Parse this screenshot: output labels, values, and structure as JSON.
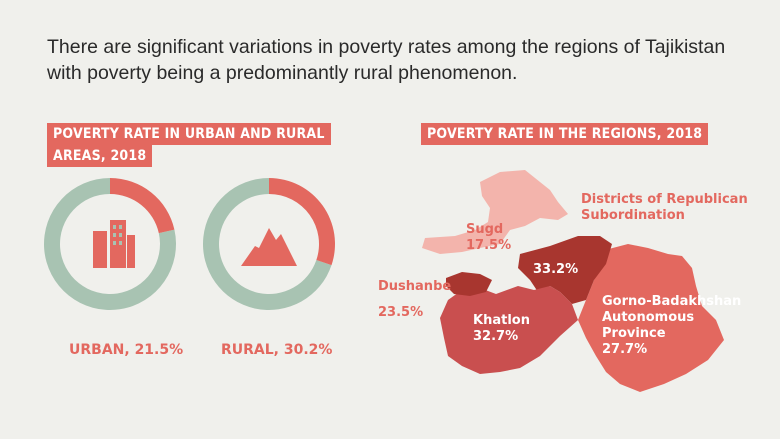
{
  "intro_text": "There are significant variations in poverty rates among the regions of Tajikistan with poverty being a predominantly rural phenomenon.",
  "colors": {
    "coral": "#e3685f",
    "sage": "#a8c3b2",
    "dark_red": "#a8362f",
    "mid_red": "#c94f4f",
    "light_pink": "#f3b4ac",
    "background": "#f0f0ec"
  },
  "chart_data": [
    {
      "type": "pie",
      "title": "POVERTY RATE IN URBAN AND RURAL AREAS, 2018",
      "title_lines": [
        "POVERTY RATE IN URBAN AND RURAL",
        "AREAS, 2018"
      ],
      "charts": [
        {
          "label": "URBAN, 21.5%",
          "value": 21.5,
          "icon": "city-buildings-icon"
        },
        {
          "label": "RURAL, 30.2%",
          "value": 30.2,
          "icon": "mountains-icon"
        }
      ]
    },
    {
      "type": "map",
      "title": "POVERTY RATE IN THE REGIONS, 2018",
      "regions": [
        {
          "name": "Sugd",
          "label": "Sugd",
          "value": "17.5%",
          "color": "#f3b4ac"
        },
        {
          "name": "Districts of Republican Subordination",
          "label_lines": [
            "Districts of Republican",
            "Subordination"
          ],
          "value": "33.2%",
          "color": "#a8362f"
        },
        {
          "name": "Dushanbe",
          "label": "Dushanbe",
          "value": "23.5%",
          "color": "#e3685f"
        },
        {
          "name": "Khatlon",
          "label": "Khatlon",
          "value": "32.7%",
          "color": "#c94f4f"
        },
        {
          "name": "Gorno-Badakhshan Autonomous Province",
          "label_lines": [
            "Gorno-Badakhshan",
            "Autonomous",
            "Province"
          ],
          "value": "27.7%",
          "color": "#e3685f"
        }
      ]
    }
  ]
}
